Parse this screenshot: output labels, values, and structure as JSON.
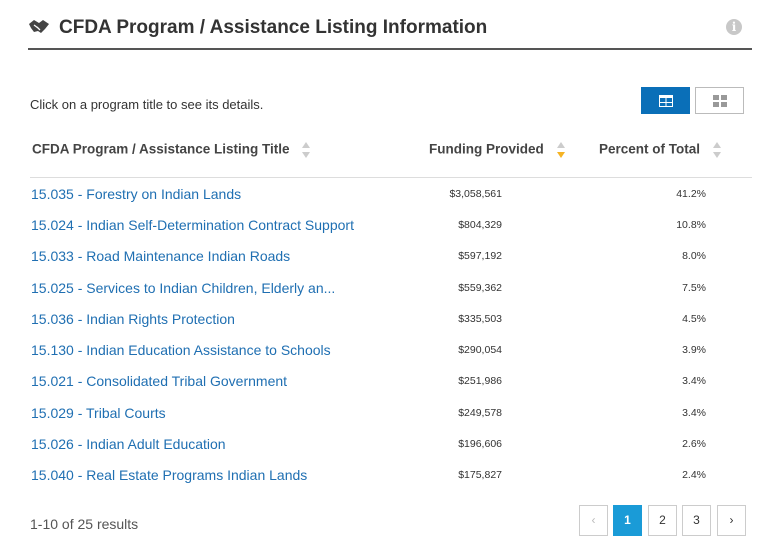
{
  "header": {
    "title": "CFDA Program / Assistance Listing Information",
    "info_glyph": "i"
  },
  "hint": "Click on a program title to see its details.",
  "view_toggle": {
    "active": "table",
    "active_color": "#0a6fb8"
  },
  "columns": {
    "title": "CFDA Program / Assistance Listing Title",
    "funding": "Funding Provided",
    "percent": "Percent of Total",
    "sorted_by": "funding",
    "sort_direction": "desc",
    "sort_active_color": "#f5b324"
  },
  "rows": [
    {
      "title": "15.035 - Forestry on Indian Lands",
      "funding": "$3,058,561",
      "percent": "41.2%"
    },
    {
      "title": "15.024 - Indian Self-Determination Contract Support",
      "funding": "$804,329",
      "percent": "10.8%"
    },
    {
      "title": "15.033 - Road Maintenance Indian Roads",
      "funding": "$597,192",
      "percent": "8.0%"
    },
    {
      "title": "15.025 - Services to Indian Children, Elderly an...",
      "funding": "$559,362",
      "percent": "7.5%"
    },
    {
      "title": "15.036 - Indian Rights Protection",
      "funding": "$335,503",
      "percent": "4.5%"
    },
    {
      "title": "15.130 - Indian Education Assistance to Schools",
      "funding": "$290,054",
      "percent": "3.9%"
    },
    {
      "title": "15.021 - Consolidated Tribal Government",
      "funding": "$251,986",
      "percent": "3.4%"
    },
    {
      "title": "15.029 - Tribal Courts",
      "funding": "$249,578",
      "percent": "3.4%"
    },
    {
      "title": "15.026 - Indian Adult Education",
      "funding": "$196,606",
      "percent": "2.6%"
    },
    {
      "title": "15.040 - Real Estate Programs Indian Lands",
      "funding": "$175,827",
      "percent": "2.4%"
    }
  ],
  "pagination": {
    "summary": "1-10 of 25 results",
    "prev_glyph": "‹",
    "next_glyph": "›",
    "pages": [
      "1",
      "2",
      "3"
    ],
    "current_page": "1",
    "active_color": "#1a9bd7"
  },
  "colors": {
    "link": "#1f6fb2",
    "header_rule": "#555555"
  }
}
